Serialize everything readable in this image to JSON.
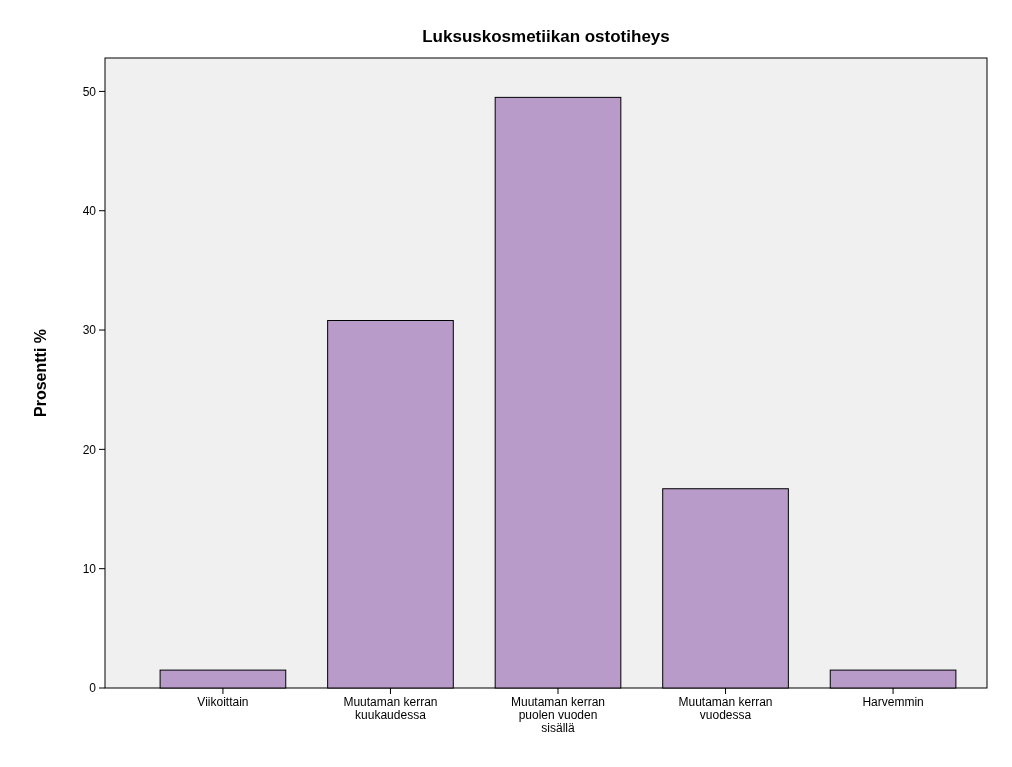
{
  "chart_data": {
    "type": "bar",
    "title": "Luksuskosmetiikan ostotiheys",
    "ylabel": "Prosentti %",
    "categories": [
      "Viikoittain",
      "Muutaman kerran kuukaudessa",
      "Muutaman kerran puolen vuoden sisällä",
      "Muutaman kerran vuodessa",
      "Harvemmin"
    ],
    "values": [
      1.5,
      30.8,
      49.5,
      16.7,
      1.5
    ],
    "color": "#b89bc9",
    "ylim": [
      0,
      52.8
    ],
    "yticks": [
      0,
      10,
      20,
      30,
      40,
      50
    ],
    "grid": false
  }
}
